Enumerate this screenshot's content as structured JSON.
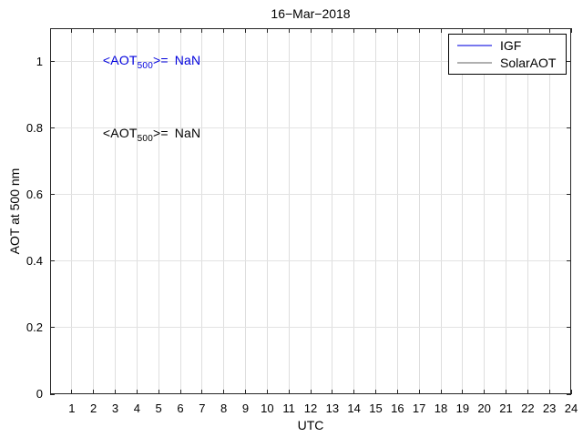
{
  "chart_data": {
    "type": "line",
    "title": "16−Mar−2018",
    "xlabel": "UTC",
    "ylabel": "AOT at 500 nm",
    "xlim": [
      0,
      24
    ],
    "ylim": [
      0,
      1.1
    ],
    "xticks": [
      1,
      2,
      3,
      4,
      5,
      6,
      7,
      8,
      9,
      10,
      11,
      12,
      13,
      14,
      15,
      16,
      17,
      18,
      19,
      20,
      21,
      22,
      23,
      24
    ],
    "xticklabels": [
      "1",
      "2",
      "3",
      "4",
      "5",
      "6",
      "7",
      "8",
      "9",
      "10",
      "11",
      "12",
      "13",
      "14",
      "15",
      "16",
      "17",
      "18",
      "19",
      "20",
      "21",
      "22",
      "23",
      "24"
    ],
    "yticks": [
      0,
      0.2,
      0.4,
      0.6,
      0.8,
      1
    ],
    "yticklabels": [
      "0",
      "0.2",
      "0.4",
      "0.6",
      "0.8",
      "1"
    ],
    "grid": true,
    "legend_position": "top-right",
    "series": [
      {
        "name": "IGF",
        "color": "#7878ee",
        "x": [],
        "y": []
      },
      {
        "name": "SolarAOT",
        "color": "#b0b0b0",
        "x": [],
        "y": []
      }
    ],
    "annotations": [
      {
        "pre": "<AOT",
        "sub": "500",
        "mid": ">=",
        "value": "NaN",
        "color": "#0000dd",
        "x": 2.43,
        "y": 1.0
      },
      {
        "pre": "<AOT",
        "sub": "500",
        "mid": ">=",
        "value": "NaN",
        "color": "#000000",
        "x": 2.43,
        "y": 0.78
      }
    ]
  },
  "colors": {
    "grid": "#dedede",
    "axes_border": "#262626",
    "background": "#ffffff"
  }
}
